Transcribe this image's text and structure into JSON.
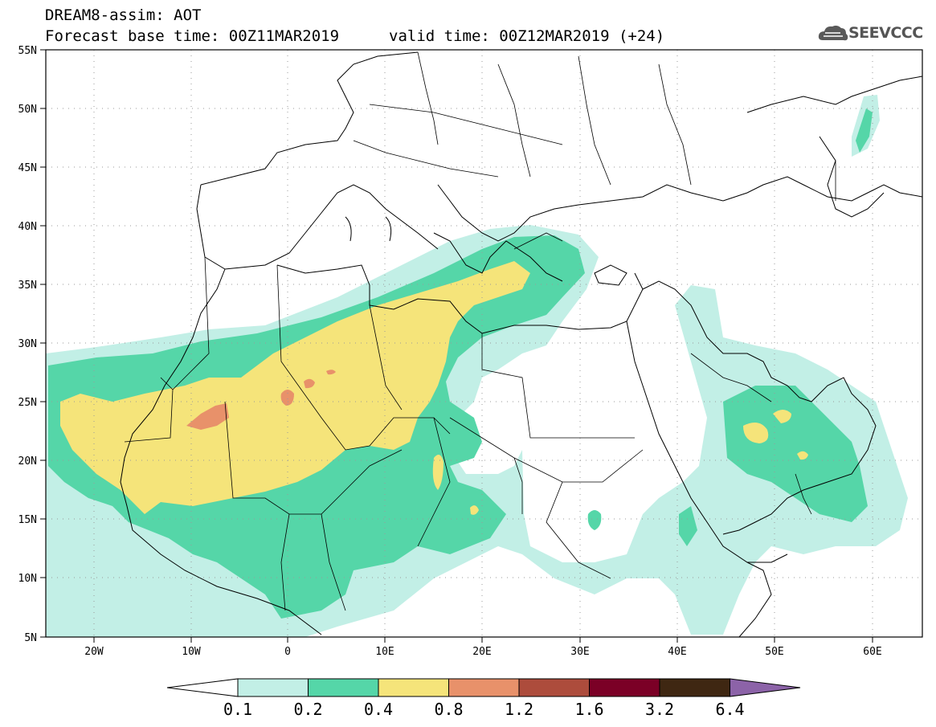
{
  "header": {
    "line1": "DREAM8-assim: AOT",
    "line2": "Forecast base time: 00Z11MAR2019",
    "valid": "valid time: 00Z12MAR2019 (+24)",
    "logo_text": "SEEVCCC"
  },
  "map": {
    "lat_labels": [
      "55N",
      "50N",
      "45N",
      "40N",
      "35N",
      "30N",
      "25N",
      "20N",
      "15N",
      "10N",
      "5N"
    ],
    "lon_labels": [
      "20W",
      "10W",
      "0",
      "10E",
      "20E",
      "30E",
      "40E",
      "50E",
      "60E"
    ],
    "colors": {
      "c01": "#c2efe6",
      "c02": "#55d6a8",
      "c04": "#f5e47a",
      "c08": "#e8916a",
      "c12": "#ad4c3c",
      "c16": "#7b0026",
      "c32": "#3f2712",
      "c64": "#8c63a8"
    }
  },
  "colorbar": {
    "labels": [
      "0.1",
      "0.2",
      "0.4",
      "0.8",
      "1.2",
      "1.6",
      "3.2",
      "6.4"
    ]
  }
}
